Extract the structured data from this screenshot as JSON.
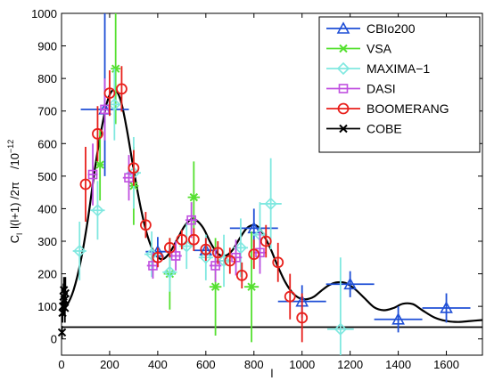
{
  "chart_data": {
    "type": "scatter",
    "title": "",
    "xlabel": "l",
    "ylabel": "C_l l(l+1)/2π /10^-12",
    "ylabel_parts": {
      "main": "C",
      "sub": "l",
      "rest": "l(l+1) /2π",
      "unit": "/10",
      "exp": "−12"
    },
    "xlim": [
      0,
      1750
    ],
    "ylim": [
      -50,
      1000
    ],
    "x_ticks": [
      0,
      200,
      400,
      600,
      800,
      1000,
      1200,
      1400,
      1600
    ],
    "y_ticks": [
      0,
      100,
      200,
      300,
      400,
      500,
      600,
      700,
      800,
      900,
      1000
    ],
    "grid": false,
    "legend_position": "top-right",
    "series": [
      {
        "name": "CBIo200",
        "color": "#1f4fd6",
        "marker": "triangle",
        "points": [
          {
            "x": 180,
            "y": 705,
            "xerr": 100,
            "yerr": [
              205,
              330
            ]
          },
          {
            "x": 400,
            "y": 268,
            "xerr": 50,
            "yerr": 45
          },
          {
            "x": 600,
            "y": 272,
            "xerr": 50,
            "yerr": 40
          },
          {
            "x": 800,
            "y": 340,
            "xerr": 100,
            "yerr": 60
          },
          {
            "x": 1000,
            "y": 115,
            "xerr": 100,
            "yerr": 50
          },
          {
            "x": 1200,
            "y": 168,
            "xerr": 100,
            "yerr": 40
          },
          {
            "x": 1400,
            "y": 60,
            "xerr": 100,
            "yerr": 40
          },
          {
            "x": 1600,
            "y": 95,
            "xerr": 100,
            "yerr": 45
          }
        ]
      },
      {
        "name": "VSA",
        "color": "#55e030",
        "marker": "x",
        "points": [
          {
            "x": 160,
            "y": 535,
            "xerr": 15,
            "yerr": 110
          },
          {
            "x": 225,
            "y": 830,
            "xerr": 20,
            "yerr": 170
          },
          {
            "x": 300,
            "y": 470,
            "xerr": 20,
            "yerr": 120
          },
          {
            "x": 450,
            "y": 200,
            "xerr": 25,
            "yerr": 110
          },
          {
            "x": 550,
            "y": 435,
            "xerr": 25,
            "yerr": 110
          },
          {
            "x": 640,
            "y": 160,
            "xerr": 25,
            "yerr": 150
          },
          {
            "x": 790,
            "y": 160,
            "xerr": 30,
            "yerr": 170
          }
        ]
      },
      {
        "name": "MAXIMA−1",
        "color": "#80e8e0",
        "marker": "diamond",
        "points": [
          {
            "x": 75,
            "y": 270,
            "xerr": 28,
            "yerr": 90
          },
          {
            "x": 150,
            "y": 395,
            "xerr": 30,
            "yerr": 90
          },
          {
            "x": 220,
            "y": 720,
            "xerr": 30,
            "yerr": 110
          },
          {
            "x": 300,
            "y": 510,
            "xerr": 30,
            "yerr": 110
          },
          {
            "x": 375,
            "y": 260,
            "xerr": 30,
            "yerr": 70
          },
          {
            "x": 450,
            "y": 205,
            "xerr": 30,
            "yerr": 60
          },
          {
            "x": 520,
            "y": 285,
            "xerr": 30,
            "yerr": 70
          },
          {
            "x": 600,
            "y": 250,
            "xerr": 30,
            "yerr": 70
          },
          {
            "x": 675,
            "y": 240,
            "xerr": 30,
            "yerr": 80
          },
          {
            "x": 745,
            "y": 280,
            "xerr": 30,
            "yerr": 90
          },
          {
            "x": 825,
            "y": 320,
            "xerr": 30,
            "yerr": 100
          },
          {
            "x": 870,
            "y": 415,
            "xerr": 45,
            "yerr": 140
          },
          {
            "x": 1160,
            "y": 30,
            "xerr": 55,
            "yerr": 220
          }
        ]
      },
      {
        "name": "DASI",
        "color": "#c050e0",
        "marker": "square",
        "points": [
          {
            "x": 130,
            "y": 505,
            "xerr": 20,
            "yerr": 95
          },
          {
            "x": 180,
            "y": 705,
            "xerr": 20,
            "yerr": 95
          },
          {
            "x": 280,
            "y": 495,
            "xerr": 25,
            "yerr": 70
          },
          {
            "x": 380,
            "y": 225,
            "xerr": 25,
            "yerr": 40
          },
          {
            "x": 475,
            "y": 255,
            "xerr": 25,
            "yerr": 45
          },
          {
            "x": 540,
            "y": 365,
            "xerr": 25,
            "yerr": 55
          },
          {
            "x": 640,
            "y": 225,
            "xerr": 25,
            "yerr": 50
          },
          {
            "x": 725,
            "y": 250,
            "xerr": 25,
            "yerr": 55
          },
          {
            "x": 825,
            "y": 265,
            "xerr": 25,
            "yerr": 65
          }
        ]
      },
      {
        "name": "BOOMERANG",
        "color": "#e8201c",
        "marker": "circle",
        "points": [
          {
            "x": 100,
            "y": 475,
            "xerr": 0,
            "yerr": 115
          },
          {
            "x": 150,
            "y": 630,
            "xerr": 0,
            "yerr": 85
          },
          {
            "x": 200,
            "y": 755,
            "xerr": 0,
            "yerr": 70
          },
          {
            "x": 250,
            "y": 768,
            "xerr": 0,
            "yerr": 70
          },
          {
            "x": 300,
            "y": 525,
            "xerr": 0,
            "yerr": 55
          },
          {
            "x": 350,
            "y": 350,
            "xerr": 0,
            "yerr": 40
          },
          {
            "x": 400,
            "y": 250,
            "xerr": 0,
            "yerr": 30
          },
          {
            "x": 450,
            "y": 280,
            "xerr": 0,
            "yerr": 30
          },
          {
            "x": 500,
            "y": 305,
            "xerr": 0,
            "yerr": 30
          },
          {
            "x": 550,
            "y": 305,
            "xerr": 0,
            "yerr": 35
          },
          {
            "x": 600,
            "y": 275,
            "xerr": 0,
            "yerr": 35
          },
          {
            "x": 650,
            "y": 265,
            "xerr": 0,
            "yerr": 35
          },
          {
            "x": 700,
            "y": 240,
            "xerr": 0,
            "yerr": 40
          },
          {
            "x": 750,
            "y": 195,
            "xerr": 0,
            "yerr": 40
          },
          {
            "x": 800,
            "y": 260,
            "xerr": 0,
            "yerr": 45
          },
          {
            "x": 850,
            "y": 300,
            "xerr": 0,
            "yerr": 50
          },
          {
            "x": 900,
            "y": 235,
            "xerr": 0,
            "yerr": 60
          },
          {
            "x": 950,
            "y": 130,
            "xerr": 0,
            "yerr": 70
          },
          {
            "x": 1000,
            "y": 65,
            "xerr": 0,
            "yerr": 75
          }
        ]
      },
      {
        "name": "COBE",
        "color": "#000000",
        "marker": "x",
        "points": [
          {
            "x": 2,
            "y": 20,
            "xerr": 0,
            "yerr": 20
          },
          {
            "x": 4,
            "y": 80,
            "xerr": 0,
            "yerr": 30
          },
          {
            "x": 6,
            "y": 100,
            "xerr": 0,
            "yerr": 30
          },
          {
            "x": 8,
            "y": 130,
            "xerr": 0,
            "yerr": 40
          },
          {
            "x": 10,
            "y": 150,
            "xerr": 0,
            "yerr": 40
          },
          {
            "x": 12,
            "y": 120,
            "xerr": 0,
            "yerr": 45
          },
          {
            "x": 14,
            "y": 95,
            "xerr": 0,
            "yerr": 45
          },
          {
            "x": 16,
            "y": 140,
            "xerr": 0,
            "yerr": 50
          }
        ]
      }
    ],
    "model_curve": {
      "color": "#000000",
      "x": [
        2,
        20,
        50,
        80,
        110,
        140,
        170,
        195,
        220,
        245,
        270,
        300,
        330,
        360,
        390,
        420,
        450,
        480,
        510,
        540,
        560,
        590,
        620,
        650,
        680,
        710,
        740,
        770,
        800,
        820,
        840,
        870,
        900,
        930,
        960,
        990,
        1020,
        1050,
        1080,
        1110,
        1140,
        1180,
        1220,
        1260,
        1300,
        1340,
        1380,
        1420,
        1460,
        1500,
        1550,
        1600,
        1650,
        1700,
        1750
      ],
      "y": [
        90,
        100,
        150,
        240,
        370,
        530,
        660,
        740,
        765,
        735,
        650,
        520,
        400,
        310,
        260,
        245,
        265,
        305,
        345,
        368,
        365,
        340,
        295,
        262,
        255,
        272,
        308,
        340,
        350,
        342,
        320,
        275,
        222,
        175,
        142,
        125,
        122,
        130,
        148,
        164,
        173,
        172,
        153,
        125,
        97,
        88,
        95,
        108,
        107,
        88,
        66,
        55,
        52,
        55,
        58
      ]
    }
  }
}
